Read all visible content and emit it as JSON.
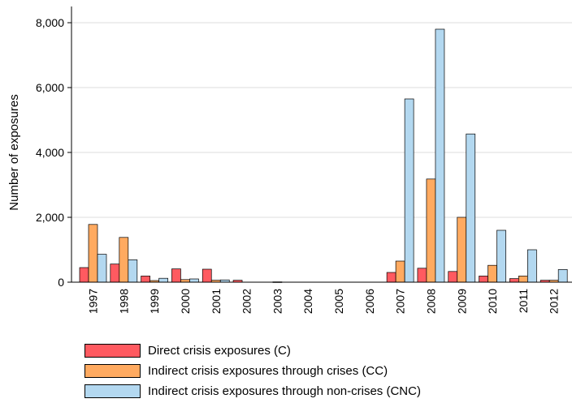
{
  "chart_data": {
    "type": "bar",
    "ylabel": "Number of exposures",
    "xlabel": "",
    "ylim": [
      0,
      8500
    ],
    "yticks": [
      0,
      2000,
      4000,
      6000,
      8000
    ],
    "ytick_labels": [
      "0",
      "2,000",
      "4,000",
      "6,000",
      "8,000"
    ],
    "grid": "horizontal",
    "legend_position": "bottom",
    "categories": [
      "1997",
      "1998",
      "1999",
      "2000",
      "2001",
      "2002",
      "2003",
      "2004",
      "2005",
      "2006",
      "2007",
      "2008",
      "2009",
      "2010",
      "2011",
      "2012"
    ],
    "series": [
      {
        "name": "Direct crisis exposures (C)",
        "color": "#ff5a60",
        "values": [
          450,
          560,
          190,
          410,
          400,
          60,
          0,
          0,
          0,
          0,
          300,
          430,
          330,
          190,
          110,
          60
        ]
      },
      {
        "name": "Indirect crisis exposures through crises (CC)",
        "color": "#ffaa60",
        "values": [
          1780,
          1380,
          50,
          80,
          60,
          0,
          10,
          0,
          0,
          0,
          650,
          3180,
          2000,
          520,
          190,
          60
        ]
      },
      {
        "name": "Indirect crisis exposures through non-crises (CNC)",
        "color": "#b3d8f0",
        "values": [
          860,
          690,
          120,
          100,
          70,
          0,
          0,
          0,
          0,
          0,
          5650,
          7800,
          4570,
          1600,
          1000,
          390
        ]
      }
    ]
  }
}
